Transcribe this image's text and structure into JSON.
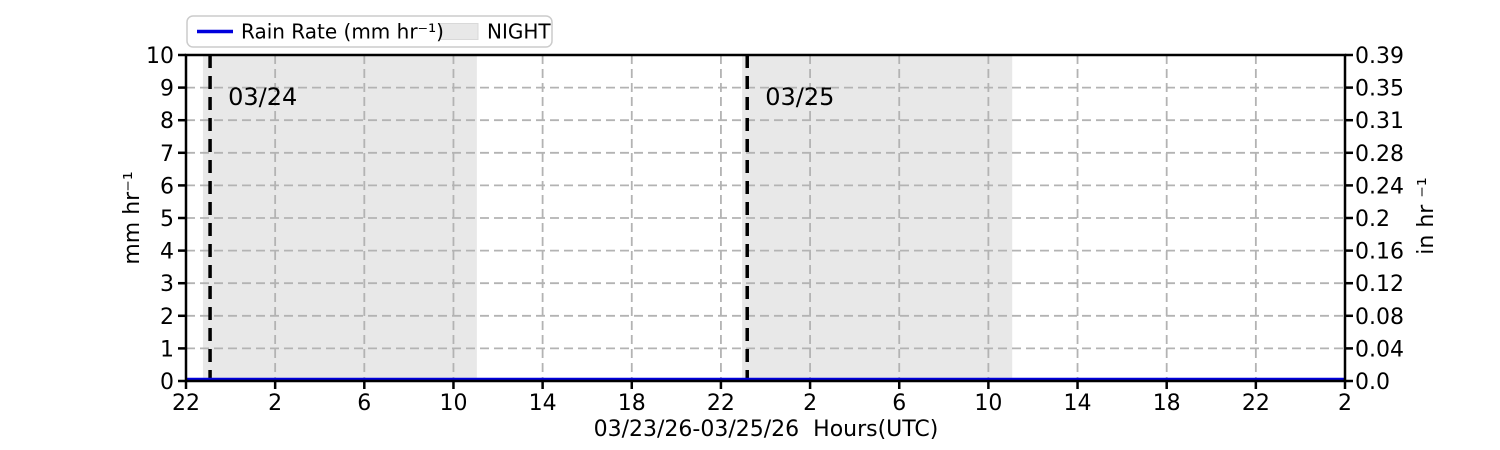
{
  "chart_data": {
    "type": "line",
    "title": "",
    "xlabel": "03/23/26-03/25/26  Hours(UTC)",
    "ylabel_left": "mm hr⁻¹",
    "ylabel_right": "in hr ⁻¹",
    "x_axis": {
      "start_hour_utc": 22,
      "total_hours": 52,
      "tick_interval_hours": 4,
      "tick_labels": [
        "22",
        "2",
        "6",
        "10",
        "14",
        "18",
        "22",
        "2",
        "6",
        "10",
        "14",
        "18",
        "22",
        "2"
      ]
    },
    "y_axis_left": {
      "min": 0,
      "max": 10,
      "ticks": [
        0,
        1,
        2,
        3,
        4,
        5,
        6,
        7,
        8,
        9,
        10
      ],
      "tick_labels": [
        "0",
        "1",
        "2",
        "3",
        "4",
        "5",
        "6",
        "7",
        "8",
        "9",
        "10"
      ]
    },
    "y_axis_right": {
      "tick_labels_bottom_to_top": [
        "0.0",
        "0.04",
        "0.08",
        "0.12",
        "0.16",
        "0.2",
        "0.24",
        "0.28",
        "0.31",
        "0.35",
        "0.39"
      ]
    },
    "series": [
      {
        "name": "Rain Rate (mm hr⁻¹)",
        "color": "#0000dd",
        "x_hours": [
          0,
          52
        ],
        "values_mm_hr": [
          0,
          0
        ]
      }
    ],
    "night_regions_hours": [
      [
        0.76,
        13.05
      ],
      [
        24.95,
        37.07
      ]
    ],
    "date_lines": [
      {
        "hour": 1.08,
        "label": "03/24"
      },
      {
        "hour": 25.18,
        "label": "03/25"
      }
    ],
    "legend": {
      "position": "top-left",
      "entries": [
        {
          "label": "Rain Rate (mm hr⁻¹)",
          "swatch": "line",
          "color": "#0000dd"
        },
        {
          "label": "NIGHT",
          "swatch": "patch",
          "color": "#e8e8e8"
        }
      ]
    },
    "grid": {
      "show": true,
      "style": "dashed"
    },
    "colors": {
      "night_fill": "#e8e8e8",
      "grid_line": "#b3b3b3",
      "date_line": "#000000",
      "annotation_text": "#3f3f3f",
      "axis": "#000000",
      "rain_line": "#0000dd"
    }
  }
}
